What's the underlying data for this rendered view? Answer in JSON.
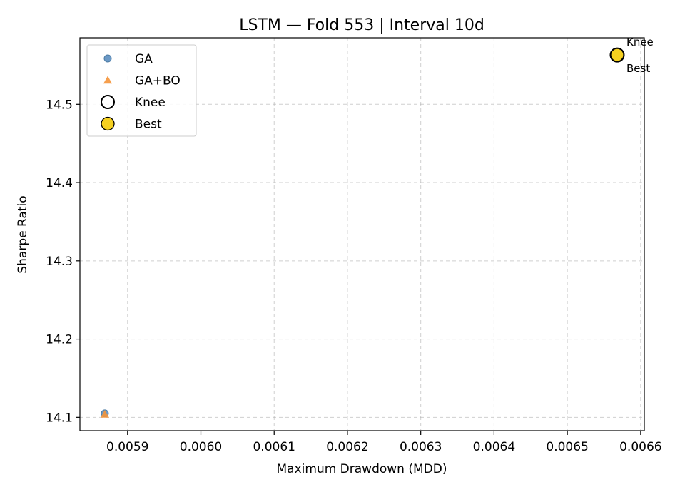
{
  "chart_data": {
    "type": "scatter",
    "title": "LSTM — Fold 553 | Interval 10d",
    "xlabel": "Maximum Drawdown (MDD)",
    "ylabel": "Sharpe Ratio",
    "xlim": [
      0.005835,
      0.006605
    ],
    "ylim": [
      14.083,
      14.585
    ],
    "xticks": [
      0.0059,
      0.006,
      0.0061,
      0.0062,
      0.0063,
      0.0064,
      0.0065,
      0.0066
    ],
    "xtick_labels": [
      "0.0059",
      "0.0060",
      "0.0061",
      "0.0062",
      "0.0063",
      "0.0064",
      "0.0065",
      "0.0066"
    ],
    "yticks": [
      14.1,
      14.2,
      14.3,
      14.4,
      14.5
    ],
    "ytick_labels": [
      "14.1",
      "14.2",
      "14.3",
      "14.4",
      "14.5"
    ],
    "grid": true,
    "legend_position": "upper-left",
    "series": [
      {
        "name": "GA",
        "marker": "circle",
        "color": "#5b8fc0",
        "points": [
          [
            0.005869,
            14.105
          ]
        ]
      },
      {
        "name": "GA+BO",
        "marker": "triangle",
        "color": "#f5953a",
        "points": [
          [
            0.005869,
            14.104
          ]
        ]
      },
      {
        "name": "Knee",
        "marker": "hollow-circle",
        "color": "#000000",
        "points": [
          [
            0.006568,
            14.563
          ]
        ]
      },
      {
        "name": "Best",
        "marker": "gold-circle",
        "color": "#f5d020",
        "points": [
          [
            0.006568,
            14.563
          ]
        ]
      }
    ],
    "annotations": [
      {
        "text": "Knee",
        "x": 0.006568,
        "y": 14.563,
        "placement": "above-right"
      },
      {
        "text": "Best",
        "x": 0.006568,
        "y": 14.563,
        "placement": "below-right"
      }
    ]
  }
}
